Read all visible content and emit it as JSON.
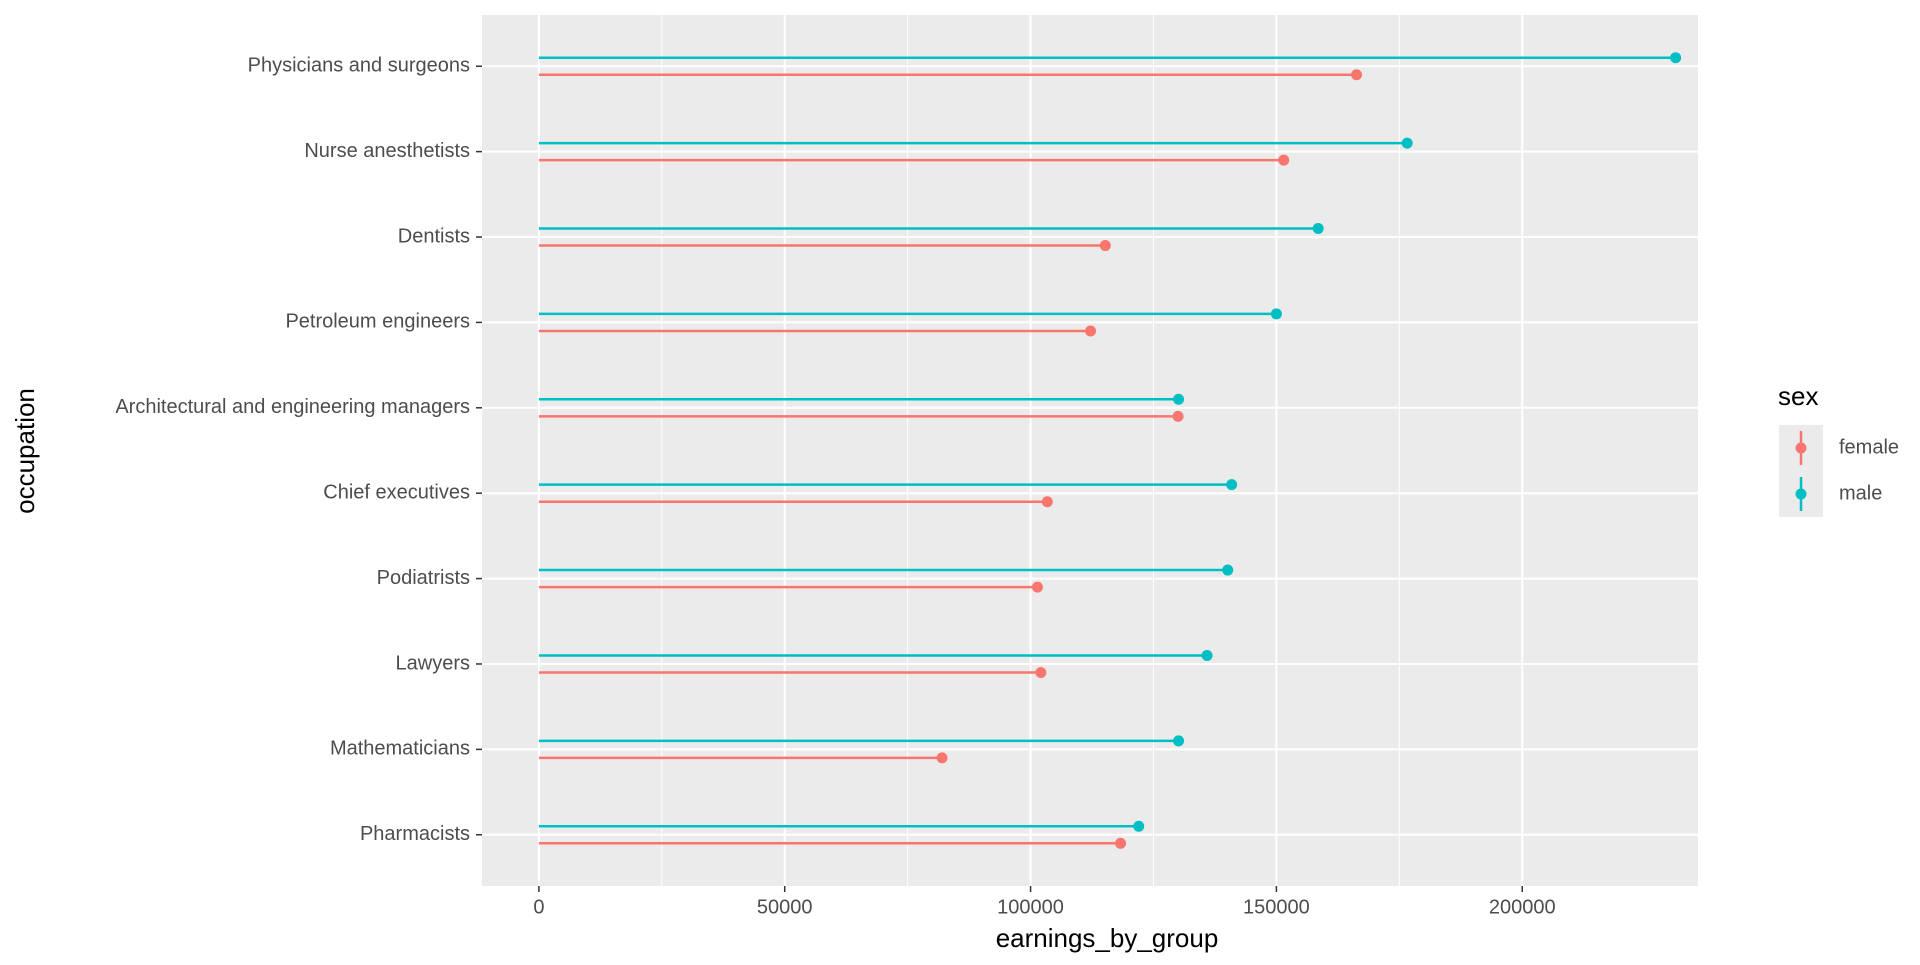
{
  "chart_data": {
    "type": "lollipop",
    "x_label": "earnings_by_group",
    "y_label": "occupation",
    "legend_title": "sex",
    "categories": [
      "Physicians and surgeons",
      "Nurse anesthetists",
      "Dentists",
      "Petroleum engineers",
      "Architectural and engineering managers",
      "Chief executives",
      "Podiatrists",
      "Lawyers",
      "Mathematicians",
      "Pharmacists"
    ],
    "series": [
      {
        "name": "female",
        "color": "#F8766D",
        "values": [
          166300,
          151500,
          115200,
          112200,
          130000,
          103400,
          101400,
          102100,
          82000,
          118300
        ]
      },
      {
        "name": "male",
        "color": "#00BFC4",
        "values": [
          231200,
          176600,
          158500,
          150000,
          130100,
          140900,
          140100,
          135900,
          130100,
          122000
        ]
      }
    ],
    "xlim": [
      -11570,
      235750
    ],
    "xticks": [
      0,
      50000,
      100000,
      150000,
      200000
    ],
    "grid": true
  }
}
